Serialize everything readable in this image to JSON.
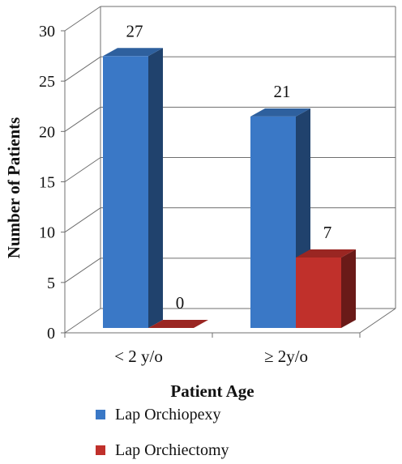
{
  "chart_data": {
    "type": "bar",
    "categories": [
      "< 2 y/o",
      "≥ 2y/o"
    ],
    "series": [
      {
        "name": "Lap Orchiopexy",
        "values": [
          27,
          21
        ],
        "color": "#3a78c6"
      },
      {
        "name": "Lap Orchiectomy",
        "values": [
          0,
          7
        ],
        "color": "#c0302b"
      }
    ],
    "xlabel": "Patient Age",
    "ylabel": "Number of Patients",
    "ylim": [
      0,
      30
    ],
    "yticks": [
      0,
      5,
      10,
      15,
      20,
      25,
      30
    ],
    "grid": true,
    "legend_position": "bottom",
    "style": "3d"
  }
}
